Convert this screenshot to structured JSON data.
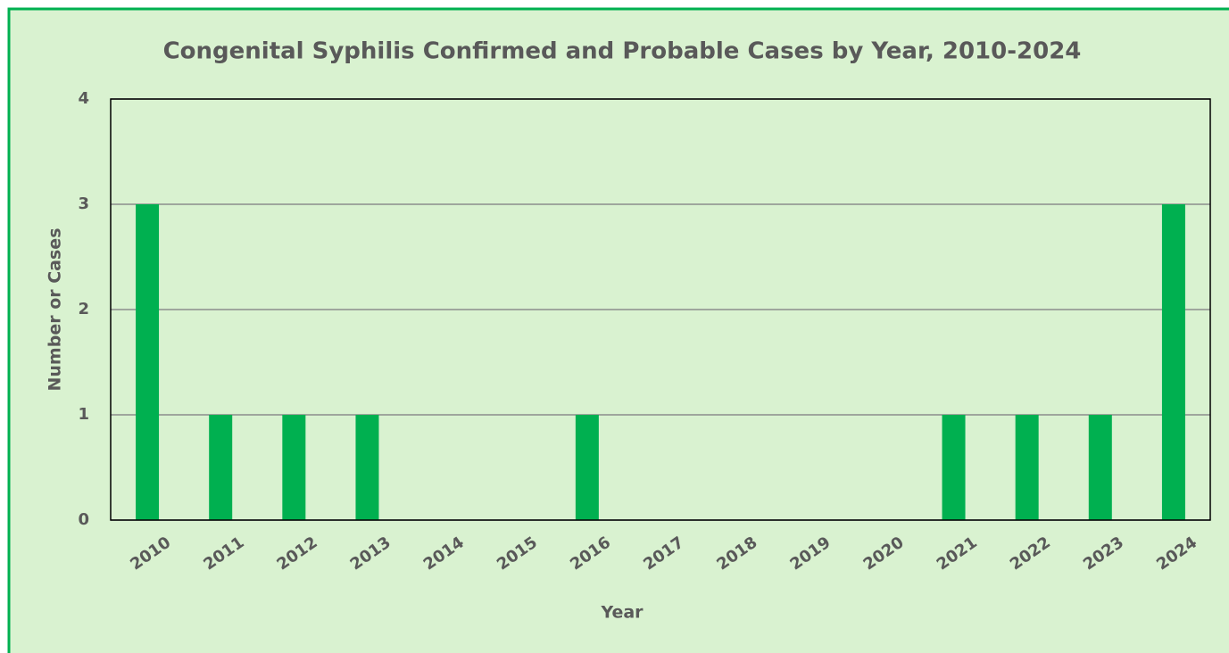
{
  "chart_data": {
    "type": "bar",
    "title": "Congenital Syphilis Confirmed and Probable Cases by Year, 2010-2024",
    "x_label": "Year",
    "y_label": "Number or Cases",
    "categories": [
      "2010",
      "2011",
      "2012",
      "2013",
      "2014",
      "2015",
      "2016",
      "2017",
      "2018",
      "2019",
      "2020",
      "2021",
      "2022",
      "2023",
      "2024"
    ],
    "values": [
      3,
      1,
      1,
      1,
      0,
      0,
      1,
      0,
      0,
      0,
      0,
      1,
      1,
      1,
      3
    ],
    "color": "#00b050",
    "ylim": [
      0,
      4
    ],
    "yticks": [
      0,
      1,
      2,
      3,
      4
    ],
    "grid": true
  }
}
